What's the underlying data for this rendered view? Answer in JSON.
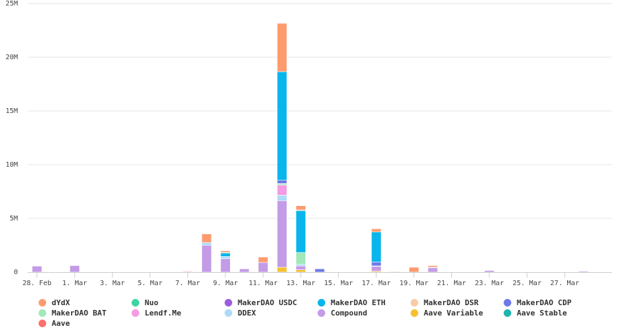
{
  "chart_data": {
    "type": "bar",
    "stacked": true,
    "title": "",
    "xlabel": "",
    "ylabel": "",
    "ylim": [
      0,
      25000000
    ],
    "y_ticks": [
      "0",
      "5M",
      "10M",
      "15M",
      "20M",
      "25M"
    ],
    "y_tick_values": [
      0,
      5000000,
      10000000,
      15000000,
      20000000,
      25000000
    ],
    "grid": "horizontal",
    "legend_position": "bottom",
    "categories": [
      "28. Feb",
      "29. Feb",
      "1. Mar",
      "2. Mar",
      "3. Mar",
      "4. Mar",
      "5. Mar",
      "6. Mar",
      "7. Mar",
      "8. Mar",
      "9. Mar",
      "10. Mar",
      "11. Mar",
      "12. Mar",
      "13. Mar",
      "14. Mar",
      "15. Mar",
      "16. Mar",
      "17. Mar",
      "18. Mar",
      "19. Mar",
      "20. Mar",
      "21. Mar",
      "22. Mar",
      "23. Mar",
      "24. Mar",
      "25. Mar",
      "26. Mar",
      "27. Mar",
      "28. Mar",
      "29. Mar"
    ],
    "x_tick_labels": [
      "28. Feb",
      "1. Mar",
      "3. Mar",
      "5. Mar",
      "7. Mar",
      "9. Mar",
      "11. Mar",
      "13. Mar",
      "15. Mar",
      "17. Mar",
      "19. Mar",
      "21. Mar",
      "23. Mar",
      "25. Mar",
      "27. Mar"
    ],
    "series": [
      {
        "name": "Aave Variable",
        "color": "#f7c02f",
        "values": [
          0,
          0,
          0,
          0,
          0,
          0,
          0,
          0,
          0,
          0,
          0,
          0,
          0,
          450000,
          220000,
          0,
          0,
          0,
          80000,
          0,
          0,
          0,
          0,
          0,
          0,
          0,
          0,
          0,
          0,
          0,
          0
        ]
      },
      {
        "name": "Compound",
        "color": "#c39be6",
        "values": [
          550000,
          0,
          600000,
          0,
          0,
          0,
          0,
          0,
          50000,
          2500000,
          1250000,
          300000,
          900000,
          6200000,
          350000,
          0,
          0,
          0,
          450000,
          0,
          0,
          400000,
          0,
          0,
          150000,
          0,
          0,
          0,
          0,
          80000,
          0
        ]
      },
      {
        "name": "DDEX",
        "color": "#addaf7",
        "values": [
          0,
          0,
          0,
          0,
          0,
          0,
          0,
          0,
          0,
          250000,
          200000,
          0,
          0,
          500000,
          150000,
          0,
          0,
          0,
          50000,
          0,
          0,
          50000,
          0,
          0,
          0,
          0,
          0,
          0,
          0,
          0,
          0
        ]
      },
      {
        "name": "Lendf.Me",
        "color": "#f49be3",
        "values": [
          0,
          0,
          0,
          0,
          0,
          0,
          0,
          0,
          0,
          0,
          0,
          0,
          0,
          950000,
          0,
          0,
          0,
          0,
          0,
          0,
          0,
          0,
          0,
          0,
          0,
          0,
          0,
          0,
          0,
          0,
          0
        ]
      },
      {
        "name": "MakerDAO BAT",
        "color": "#a2e8bb",
        "values": [
          0,
          0,
          0,
          0,
          0,
          0,
          0,
          0,
          0,
          0,
          0,
          0,
          0,
          150000,
          1100000,
          0,
          0,
          0,
          0,
          0,
          0,
          0,
          0,
          0,
          0,
          0,
          0,
          0,
          0,
          0,
          0
        ]
      },
      {
        "name": "MakerDAO CDP",
        "color": "#6f79e8",
        "values": [
          0,
          0,
          0,
          0,
          0,
          0,
          0,
          0,
          0,
          0,
          0,
          0,
          0,
          300000,
          0,
          300000,
          0,
          0,
          350000,
          0,
          0,
          0,
          0,
          0,
          0,
          0,
          0,
          0,
          0,
          0,
          0
        ]
      },
      {
        "name": "MakerDAO ETH",
        "color": "#08b5ec",
        "values": [
          0,
          0,
          0,
          0,
          0,
          0,
          0,
          0,
          0,
          0,
          300000,
          0,
          0,
          10100000,
          3900000,
          0,
          0,
          0,
          2800000,
          0,
          0,
          0,
          0,
          0,
          0,
          0,
          0,
          0,
          0,
          0,
          0
        ]
      },
      {
        "name": "Aave Stable",
        "color": "#1fb4ad",
        "values": [
          0,
          0,
          0,
          0,
          0,
          0,
          0,
          0,
          0,
          0,
          80000,
          0,
          0,
          0,
          50000,
          0,
          0,
          0,
          0,
          0,
          0,
          0,
          0,
          0,
          0,
          0,
          0,
          0,
          0,
          0,
          0
        ]
      },
      {
        "name": "Nuo",
        "color": "#3dd5a1",
        "values": [
          0,
          0,
          0,
          0,
          0,
          0,
          0,
          0,
          0,
          0,
          0,
          0,
          0,
          0,
          0,
          0,
          0,
          0,
          0,
          0,
          0,
          0,
          0,
          0,
          0,
          0,
          0,
          0,
          0,
          0,
          0
        ]
      },
      {
        "name": "MakerDAO USDC",
        "color": "#9b5de0",
        "values": [
          0,
          0,
          0,
          0,
          0,
          0,
          0,
          0,
          0,
          0,
          0,
          0,
          0,
          0,
          0,
          0,
          0,
          0,
          0,
          0,
          0,
          0,
          0,
          0,
          0,
          0,
          0,
          0,
          0,
          0,
          0
        ]
      },
      {
        "name": "MakerDAO DSR",
        "color": "#f9cba6",
        "values": [
          0,
          0,
          0,
          0,
          0,
          0,
          0,
          0,
          0,
          0,
          0,
          0,
          0,
          0,
          0,
          0,
          0,
          0,
          0,
          0,
          0,
          0,
          0,
          0,
          0,
          0,
          0,
          0,
          0,
          0,
          0
        ]
      },
      {
        "name": "Aave",
        "color": "#fe6f6b",
        "values": [
          0,
          0,
          0,
          0,
          0,
          0,
          0,
          0,
          0,
          0,
          0,
          0,
          0,
          0,
          0,
          0,
          0,
          0,
          0,
          0,
          0,
          0,
          0,
          0,
          0,
          0,
          0,
          0,
          0,
          0,
          0
        ]
      },
      {
        "name": "dYdX",
        "color": "#fd9b6f",
        "values": [
          0,
          0,
          0,
          0,
          0,
          0,
          0,
          0,
          50000,
          800000,
          150000,
          0,
          500000,
          4500000,
          400000,
          0,
          0,
          0,
          300000,
          50000,
          450000,
          150000,
          0,
          0,
          0,
          0,
          0,
          0,
          0,
          0,
          0
        ]
      }
    ],
    "legend": [
      {
        "name": "dYdX",
        "color": "#fd9b6f"
      },
      {
        "name": "Nuo",
        "color": "#3dd5a1"
      },
      {
        "name": "MakerDAO USDC",
        "color": "#9b5de0"
      },
      {
        "name": "MakerDAO ETH",
        "color": "#08b5ec"
      },
      {
        "name": "MakerDAO DSR",
        "color": "#f9cba6"
      },
      {
        "name": "MakerDAO CDP",
        "color": "#6f79e8"
      },
      {
        "name": "MakerDAO BAT",
        "color": "#a2e8bb"
      },
      {
        "name": "Lendf.Me",
        "color": "#f49be3"
      },
      {
        "name": "DDEX",
        "color": "#addaf7"
      },
      {
        "name": "Compound",
        "color": "#c39be6"
      },
      {
        "name": "Aave Variable",
        "color": "#f7c02f"
      },
      {
        "name": "Aave Stable",
        "color": "#1fb4ad"
      },
      {
        "name": "Aave",
        "color": "#fe6f6b"
      }
    ]
  }
}
